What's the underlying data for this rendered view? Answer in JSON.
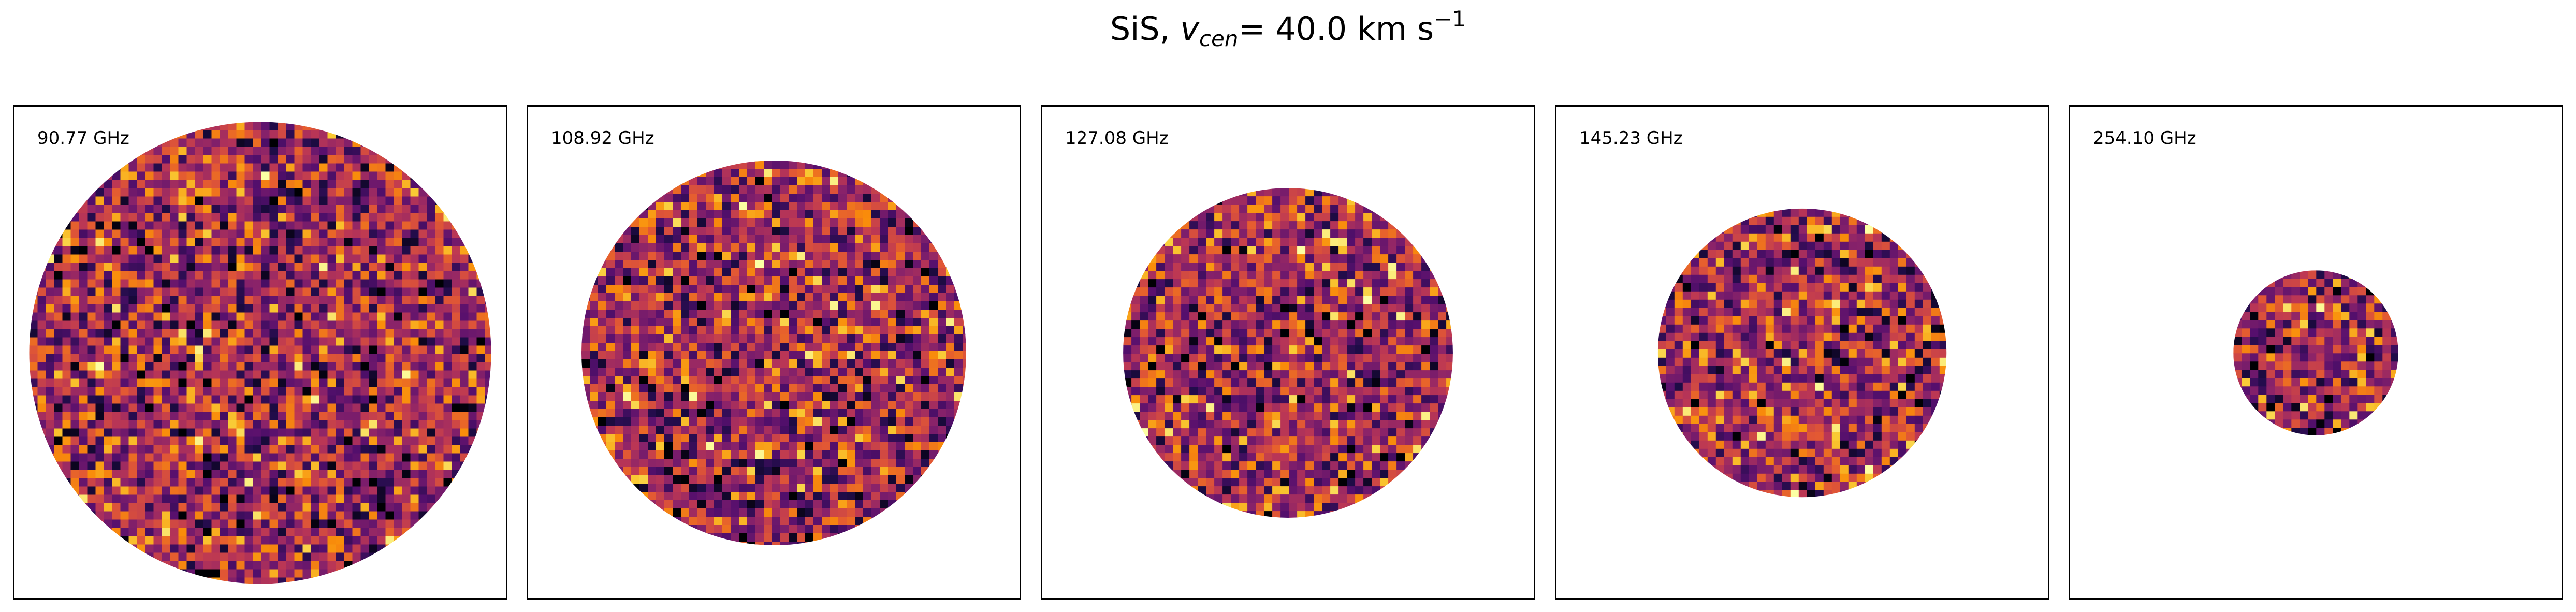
{
  "title": {
    "molecule": "SiS,",
    "var": "v",
    "sub": "cen",
    "eq": "= 40.0 km s",
    "exp": "−1"
  },
  "chart_data": {
    "type": "heatmap",
    "title": "SiS, v_cen = 40.0 km s^-1",
    "colormap": "inferno",
    "grid": false,
    "panels": [
      {
        "label": "90.77 GHz",
        "frequency_ghz": 90.77,
        "relative_extent": 1.0
      },
      {
        "label": "108.92 GHz",
        "frequency_ghz": 108.92,
        "relative_extent": 0.833
      },
      {
        "label": "127.08 GHz",
        "frequency_ghz": 127.08,
        "relative_extent": 0.714
      },
      {
        "label": "145.23 GHz",
        "frequency_ghz": 145.23,
        "relative_extent": 0.625
      },
      {
        "label": "254.10 GHz",
        "frequency_ghz": 254.1,
        "relative_extent": 0.357
      }
    ]
  }
}
